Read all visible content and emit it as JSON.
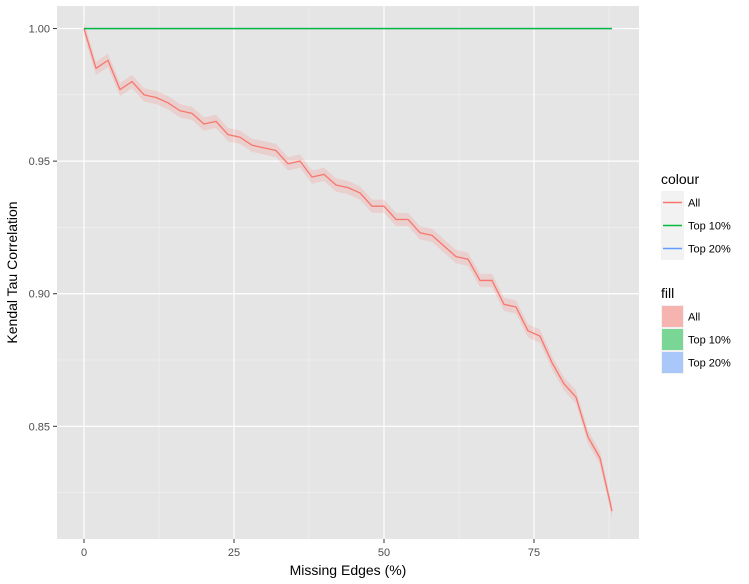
{
  "chart_data": {
    "type": "line",
    "xlabel": "Missing Edges (%)",
    "ylabel": "Kendal Tau Correlation",
    "xlim": [
      -4.5,
      92.5
    ],
    "ylim": [
      0.8075,
      1.0085
    ],
    "x_ticks": [
      0,
      25,
      50,
      75
    ],
    "x_tick_labels": [
      "0",
      "25",
      "50",
      "75"
    ],
    "y_ticks": [
      0.85,
      0.9,
      0.95,
      1.0
    ],
    "y_tick_labels": [
      "0.85",
      "0.90",
      "0.95",
      "1.00"
    ],
    "grid": true,
    "panel_background": "#e5e5e5",
    "series": [
      {
        "name": "All",
        "color": "#f8766d",
        "fill": "#f8766d",
        "x": [
          0,
          2,
          4,
          6,
          8,
          10,
          12,
          14,
          16,
          18,
          20,
          22,
          24,
          26,
          28,
          30,
          32,
          34,
          36,
          38,
          40,
          42,
          44,
          46,
          48,
          50,
          52,
          54,
          56,
          58,
          60,
          62,
          64,
          66,
          68,
          70,
          72,
          74,
          76,
          78,
          80,
          82,
          84,
          86,
          88
        ],
        "values": [
          1.0,
          0.985,
          0.988,
          0.977,
          0.98,
          0.975,
          0.974,
          0.972,
          0.969,
          0.968,
          0.964,
          0.965,
          0.96,
          0.959,
          0.956,
          0.955,
          0.954,
          0.949,
          0.95,
          0.944,
          0.945,
          0.941,
          0.94,
          0.938,
          0.933,
          0.933,
          0.928,
          0.928,
          0.923,
          0.922,
          0.918,
          0.914,
          0.913,
          0.905,
          0.905,
          0.896,
          0.895,
          0.886,
          0.884,
          0.874,
          0.866,
          0.861,
          0.846,
          0.838,
          0.818
        ],
        "band_halfwidth": 0.0025
      },
      {
        "name": "Top 10%",
        "color": "#00ba38",
        "fill": "#00ba38",
        "x": [
          0,
          88
        ],
        "values": [
          1.0,
          1.0
        ]
      },
      {
        "name": "Top 20%",
        "color": "#619cff",
        "fill": "#619cff",
        "x": [
          0,
          88
        ],
        "values": [
          1.0,
          1.0
        ]
      }
    ],
    "legend": {
      "placement": "right",
      "colour_title": "colour",
      "fill_title": "fill",
      "entries": [
        "All",
        "Top 10%",
        "Top 20%"
      ]
    }
  }
}
